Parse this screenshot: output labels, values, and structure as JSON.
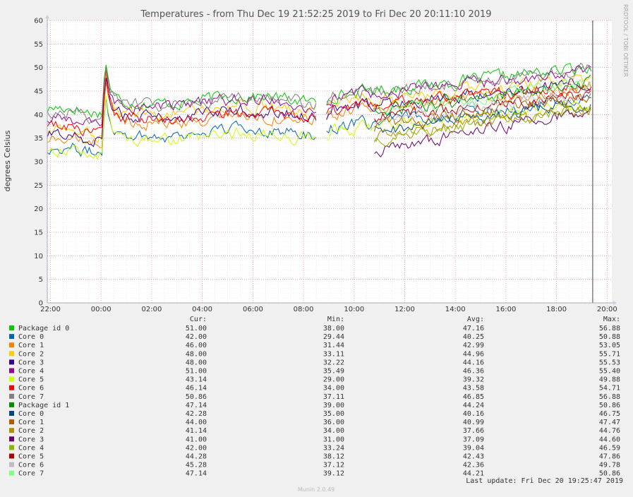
{
  "chart_data": {
    "type": "line",
    "title": "Temperatures - from Thu Dec 19 21:52:25 2019 to Fri Dec 20 20:11:10 2019",
    "ylabel": "degrees Celsius",
    "xlabel": "",
    "side_label": "RRDTOOL / TOBI OETIKER",
    "ylim": [
      0,
      60
    ],
    "yticks": [
      "0",
      "5",
      "10",
      "15",
      "20",
      "25",
      "30",
      "35",
      "40",
      "45",
      "50",
      "55",
      "60"
    ],
    "xticks": [
      "22:00",
      "00:00",
      "02:00",
      "04:00",
      "06:00",
      "08:00",
      "10:00",
      "12:00",
      "14:00",
      "16:00",
      "18:00",
      "20:00"
    ],
    "xtick_hours": [
      22,
      24,
      26,
      28,
      30,
      32,
      34,
      36,
      38,
      40,
      42,
      44
    ],
    "x_range_hours": [
      21.874,
      44.186
    ],
    "gap_hours": [
      32.55,
      32.85
    ],
    "last_update_hour": 43.43,
    "grid": true,
    "legend_headers": {
      "cur": "Cur:",
      "min": "Min:",
      "avg": "Avg:",
      "max": "Max:"
    },
    "series": [
      {
        "name": "Package id 0",
        "color": "#00cc00",
        "cur": "51.00",
        "min": "38.00",
        "avg": "47.16",
        "max": "56.88"
      },
      {
        "name": "Core 0",
        "color": "#0066b3",
        "cur": "42.00",
        "min": "29.44",
        "avg": "40.25",
        "max": "50.88"
      },
      {
        "name": "Core 1",
        "color": "#ff8000",
        "cur": "46.00",
        "min": "31.44",
        "avg": "42.99",
        "max": "53.05"
      },
      {
        "name": "Core 2",
        "color": "#ffcc00",
        "cur": "48.00",
        "min": "33.11",
        "avg": "44.96",
        "max": "55.71"
      },
      {
        "name": "Core 3",
        "color": "#330099",
        "cur": "48.00",
        "min": "32.22",
        "avg": "44.16",
        "max": "55.53"
      },
      {
        "name": "Core 4",
        "color": "#990099",
        "cur": "51.00",
        "min": "35.49",
        "avg": "46.36",
        "max": "55.40"
      },
      {
        "name": "Core 5",
        "color": "#ccff00",
        "cur": "43.14",
        "min": "29.00",
        "avg": "39.32",
        "max": "49.88"
      },
      {
        "name": "Core 6",
        "color": "#ff0000",
        "cur": "46.14",
        "min": "34.00",
        "avg": "43.58",
        "max": "54.71"
      },
      {
        "name": "Core 7",
        "color": "#808080",
        "cur": "50.86",
        "min": "37.11",
        "avg": "46.85",
        "max": "56.88"
      },
      {
        "name": "Package id 1",
        "color": "#008f00",
        "cur": "47.14",
        "min": "39.00",
        "avg": "44.24",
        "max": "50.86"
      },
      {
        "name": "Core 0",
        "color": "#00487d",
        "cur": "42.28",
        "min": "35.00",
        "avg": "40.16",
        "max": "46.75"
      },
      {
        "name": "Core 1",
        "color": "#b35a00",
        "cur": "44.00",
        "min": "36.00",
        "avg": "40.99",
        "max": "47.47"
      },
      {
        "name": "Core 2",
        "color": "#b38f00",
        "cur": "41.14",
        "min": "34.00",
        "avg": "37.66",
        "max": "44.76"
      },
      {
        "name": "Core 3",
        "color": "#6b006b",
        "cur": "41.00",
        "min": "31.00",
        "avg": "37.09",
        "max": "44.60"
      },
      {
        "name": "Core 4",
        "color": "#8fb300",
        "cur": "42.00",
        "min": "33.24",
        "avg": "39.04",
        "max": "46.59"
      },
      {
        "name": "Core 5",
        "color": "#b30000",
        "cur": "44.28",
        "min": "38.12",
        "avg": "42.43",
        "max": "47.86"
      },
      {
        "name": "Core 6",
        "color": "#bebebe",
        "cur": "45.28",
        "min": "37.12",
        "avg": "42.36",
        "max": "49.78"
      },
      {
        "name": "Core 7",
        "color": "#80ff80",
        "cur": "47.14",
        "min": "39.12",
        "avg": "44.21",
        "max": "50.86"
      }
    ],
    "last_update": "Last update: Fri Dec 20 19:25:47 2019",
    "footer": "Munin 2.0.49"
  }
}
